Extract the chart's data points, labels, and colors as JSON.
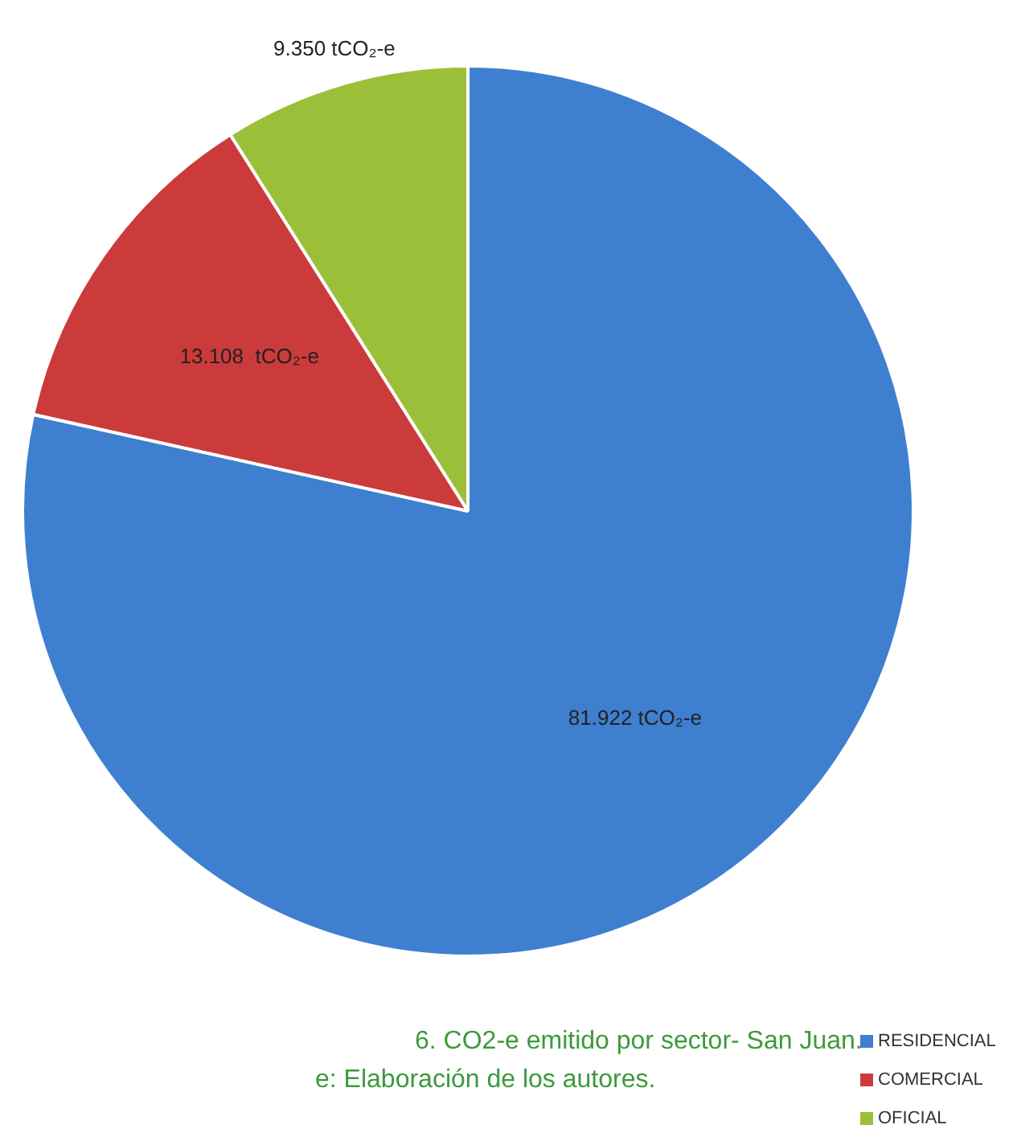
{
  "chart_data": {
    "type": "pie",
    "categories": [
      "RESIDENCIAL",
      "COMERCIAL",
      "OFICIAL"
    ],
    "values": [
      81922,
      13108,
      9350
    ],
    "value_labels": [
      "81.922 tCO₂-e",
      "13.108  tCO₂-e",
      "9.350 tCO₂-e"
    ],
    "colors": [
      "#3f7fcf",
      "#cc3b3b",
      "#9cbf3a"
    ],
    "legend": "bottom right",
    "annotations": [
      "6. CO2-e emitido por sector- San Juan.",
      "e: Elaboración de los autores."
    ]
  }
}
